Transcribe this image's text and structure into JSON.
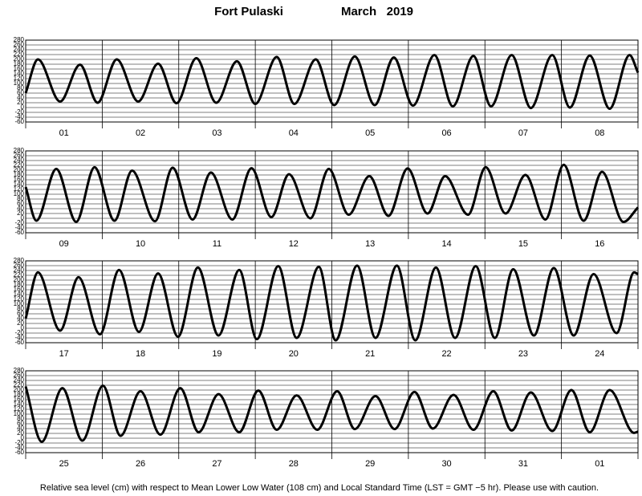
{
  "header": {
    "station": "Fort Pulaski",
    "period": "March   2019"
  },
  "footer": "Relative sea level (cm) with respect to Mean Lower Low Water (108 cm) and Local Standard Time (LST = GMT −5 hr). Please use with caution.",
  "chart_data": [
    {
      "type": "line",
      "days": [
        "01",
        "02",
        "03",
        "04",
        "05",
        "06",
        "07",
        "08"
      ],
      "x": [
        0,
        0.16,
        0.45,
        0.71,
        0.94,
        1.19,
        1.47,
        1.73,
        1.97,
        2.23,
        2.49,
        2.76,
        3.0,
        3.28,
        3.51,
        3.79,
        4.03,
        4.3,
        4.56,
        4.81,
        5.06,
        5.34,
        5.58,
        5.85,
        6.08,
        6.35,
        6.6,
        6.88,
        7.11,
        7.37,
        7.63,
        7.89,
        8
      ],
      "series": [
        {
          "color": "#000000",
          "values": [
            60,
            200,
            25,
            178,
            20,
            200,
            25,
            182,
            18,
            205,
            20,
            192,
            15,
            210,
            15,
            200,
            10,
            212,
            10,
            208,
            8,
            218,
            5,
            214,
            5,
            218,
            -2,
            218,
            0,
            216,
            -5,
            218,
            145
          ]
        }
      ],
      "xlim": [
        0,
        8
      ],
      "xticks": [
        0,
        1,
        2,
        3,
        4,
        5,
        6,
        7,
        8
      ],
      "ylim": [
        -60,
        280
      ],
      "yticks": [
        -60,
        -40,
        -20,
        0,
        20,
        40,
        60,
        80,
        100,
        120,
        140,
        160,
        180,
        200,
        220,
        240,
        260,
        280
      ],
      "grid": true
    },
    {
      "type": "line",
      "days": [
        "09",
        "10",
        "11",
        "12",
        "13",
        "14",
        "15",
        "16"
      ],
      "x": [
        0,
        0.14,
        0.4,
        0.66,
        0.9,
        1.16,
        1.39,
        1.69,
        1.92,
        2.18,
        2.42,
        2.7,
        2.95,
        3.21,
        3.44,
        3.72,
        3.96,
        4.22,
        4.49,
        4.74,
        4.99,
        5.25,
        5.48,
        5.78,
        6.01,
        6.27,
        6.53,
        6.79,
        7.03,
        7.29,
        7.53,
        7.81,
        8
      ],
      "series": [
        {
          "color": "#000000",
          "values": [
            130,
            -10,
            205,
            -15,
            212,
            -10,
            198,
            -12,
            210,
            -5,
            190,
            -5,
            208,
            5,
            183,
            0,
            205,
            15,
            175,
            10,
            207,
            20,
            175,
            15,
            212,
            20,
            180,
            -5,
            222,
            -10,
            193,
            -15,
            45
          ]
        }
      ],
      "xlim": [
        0,
        8
      ],
      "xticks": [
        0,
        1,
        2,
        3,
        4,
        5,
        6,
        7,
        8
      ],
      "ylim": [
        -60,
        280
      ],
      "yticks": [
        -60,
        -40,
        -20,
        0,
        20,
        40,
        60,
        80,
        100,
        120,
        140,
        160,
        180,
        200,
        220,
        240,
        260,
        280
      ],
      "grid": true
    },
    {
      "type": "line",
      "days": [
        "17",
        "18",
        "19",
        "20",
        "21",
        "22",
        "23",
        "24"
      ],
      "x": [
        0,
        0.16,
        0.45,
        0.69,
        0.97,
        1.22,
        1.48,
        1.73,
        1.99,
        2.25,
        2.52,
        2.79,
        3.02,
        3.3,
        3.54,
        3.83,
        4.05,
        4.33,
        4.57,
        4.85,
        5.09,
        5.36,
        5.61,
        5.88,
        6.13,
        6.37,
        6.64,
        6.9,
        7.16,
        7.42,
        7.72,
        7.95,
        8
      ],
      "series": [
        {
          "color": "#000000",
          "values": [
            40,
            232,
            -10,
            212,
            -25,
            242,
            -15,
            228,
            -35,
            252,
            -30,
            242,
            -45,
            258,
            -40,
            255,
            -50,
            260,
            -40,
            260,
            -50,
            252,
            -40,
            258,
            -40,
            245,
            -30,
            250,
            -30,
            225,
            -20,
            232,
            225
          ]
        }
      ],
      "xlim": [
        0,
        8
      ],
      "xticks": [
        0,
        1,
        2,
        3,
        4,
        5,
        6,
        7,
        8
      ],
      "ylim": [
        -60,
        280
      ],
      "yticks": [
        -60,
        -40,
        -20,
        0,
        20,
        40,
        60,
        80,
        100,
        120,
        140,
        160,
        180,
        200,
        220,
        240,
        260,
        280
      ],
      "grid": true
    },
    {
      "type": "line",
      "days": [
        "25",
        "26",
        "27",
        "28",
        "29",
        "30",
        "31",
        "01"
      ],
      "x": [
        0,
        0.21,
        0.48,
        0.74,
        1.01,
        1.24,
        1.5,
        1.76,
        2.02,
        2.26,
        2.52,
        2.79,
        3.04,
        3.28,
        3.54,
        3.81,
        4.07,
        4.3,
        4.57,
        4.82,
        5.08,
        5.32,
        5.59,
        5.85,
        6.11,
        6.35,
        6.6,
        6.88,
        7.13,
        7.37,
        7.63,
        7.95,
        8
      ],
      "series": [
        {
          "color": "#000000",
          "values": [
            215,
            -15,
            208,
            -10,
            218,
            10,
            195,
            15,
            208,
            25,
            183,
            25,
            198,
            35,
            178,
            35,
            195,
            38,
            175,
            38,
            192,
            40,
            180,
            35,
            195,
            32,
            190,
            30,
            200,
            25,
            200,
            22,
            28
          ]
        }
      ],
      "xlim": [
        0,
        8
      ],
      "xticks": [
        0,
        1,
        2,
        3,
        4,
        5,
        6,
        7,
        8
      ],
      "ylim": [
        -60,
        280
      ],
      "yticks": [
        -60,
        -40,
        -20,
        0,
        20,
        40,
        60,
        80,
        100,
        120,
        140,
        160,
        180,
        200,
        220,
        240,
        260,
        280
      ],
      "grid": true
    }
  ]
}
